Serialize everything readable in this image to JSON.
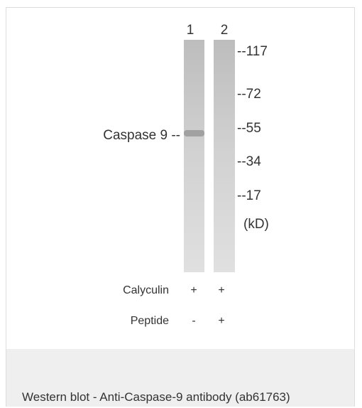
{
  "blot": {
    "lane_labels": [
      "1",
      "2"
    ],
    "markers": [
      "--117",
      "--72",
      "--55",
      "--34",
      "--17",
      "(kD)"
    ],
    "band_label": "Caspase 9 --",
    "treatments": [
      {
        "name": "Calyculin",
        "lanes": [
          "+",
          "+"
        ]
      },
      {
        "name": "Peptide",
        "lanes": [
          "-",
          "+"
        ]
      }
    ]
  },
  "caption": "Western blot - Anti-Caspase-9 antibody (ab61763)"
}
